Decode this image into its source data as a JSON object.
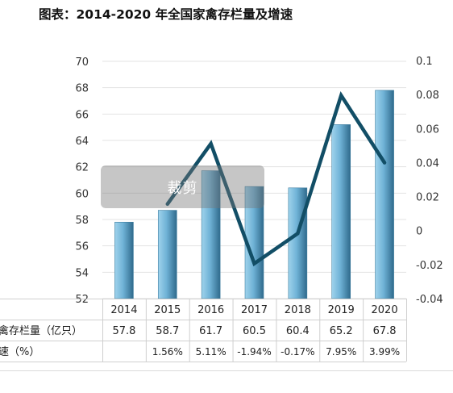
{
  "page": {
    "title": "图表：2014-2020 年全国家禽存栏量及增速"
  },
  "overlay": {
    "label": "裁剪"
  },
  "table": {
    "row1_label": "禽存栏量（亿只）",
    "row2_label": "速（%）"
  },
  "colors": {
    "bar_light": "#7bbfe0",
    "bar_dark": "#2f6a8c",
    "line": "#124e66",
    "grid": "#e3e3e3"
  },
  "chart_data": {
    "type": "bar+line",
    "title": "图表：2014-2020 年全国家禽存栏量及增速",
    "categories": [
      "2014",
      "2015",
      "2016",
      "2017",
      "2018",
      "2019",
      "2020"
    ],
    "series": [
      {
        "name": "禽存栏量（亿只）",
        "kind": "bar",
        "axis": "left",
        "values": [
          57.8,
          58.7,
          61.7,
          60.5,
          60.4,
          65.2,
          67.8
        ],
        "labels": [
          "57.8",
          "58.7",
          "61.7",
          "60.5",
          "60.4",
          "65.2",
          "67.8"
        ]
      },
      {
        "name": "速（%）",
        "kind": "line",
        "axis": "right",
        "values": [
          null,
          0.0156,
          0.0511,
          -0.0194,
          -0.0017,
          0.0795,
          0.0399
        ],
        "labels": [
          "",
          "1.56%",
          "5.11%",
          "-1.94%",
          "-0.17%",
          "7.95%",
          "3.99%"
        ]
      }
    ],
    "y_left": {
      "min": 52,
      "max": 70,
      "ticks": [
        52,
        54,
        56,
        58,
        60,
        62,
        64,
        66,
        68,
        70
      ]
    },
    "y_right": {
      "min": -0.04,
      "max": 0.1,
      "ticks": [
        -0.04,
        -0.02,
        0,
        0.02,
        0.04,
        0.06,
        0.08,
        0.1
      ],
      "tick_labels": [
        "-0.04",
        "-0.02",
        "0",
        "0.02",
        "0.04",
        "0.06",
        "0.08",
        "0.1"
      ]
    },
    "grid": true,
    "legend": "table-below"
  }
}
